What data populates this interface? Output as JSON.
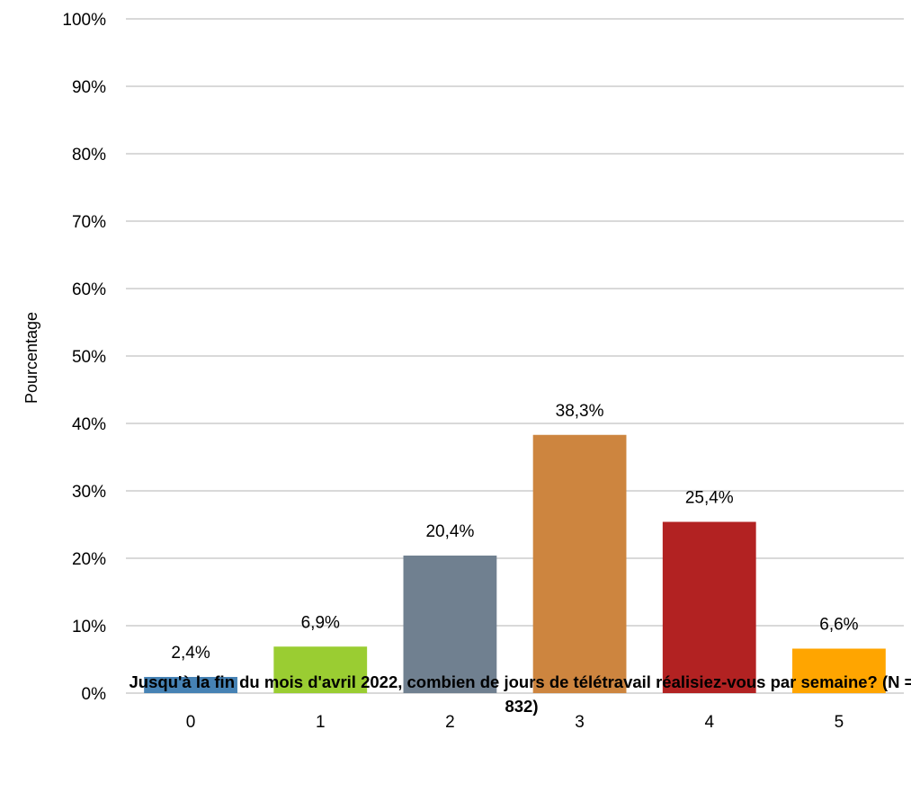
{
  "chart_data": {
    "type": "bar",
    "categories": [
      "0",
      "1",
      "2",
      "3",
      "4",
      "5"
    ],
    "values": [
      2.4,
      6.9,
      20.4,
      38.3,
      25.4,
      6.6
    ],
    "data_labels": [
      "2,4%",
      "6,9%",
      "20,4%",
      "38,3%",
      "25,4%",
      "6,6%"
    ],
    "colors": [
      "#4682b4",
      "#9acd32",
      "#708090",
      "#cd853f",
      "#b22222",
      "#ffa500"
    ],
    "ylim": [
      0,
      100
    ],
    "yticks": [
      0,
      10,
      20,
      30,
      40,
      50,
      60,
      70,
      80,
      90,
      100
    ],
    "ytick_labels": [
      "0%",
      "10%",
      "20%",
      "30%",
      "40%",
      "50%",
      "60%",
      "70%",
      "80%",
      "90%",
      "100%"
    ],
    "ylabel": "Pourcentage",
    "xlabel": "Jusqu'à la fin du mois d'avril 2022, combien de jours de télétravail réalisiez-vous par semaine? (N = 832)",
    "grid": true,
    "gridline_color": "#d9d9d9",
    "legend": "none"
  }
}
